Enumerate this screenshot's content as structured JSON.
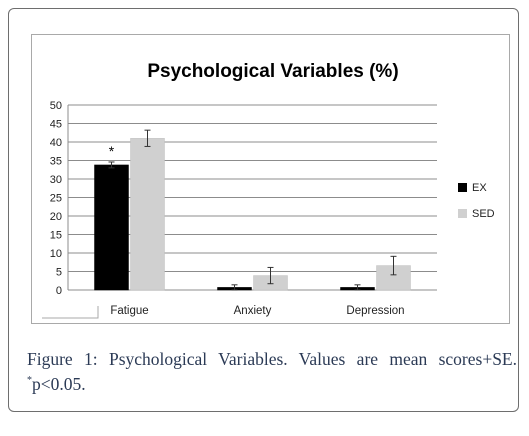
{
  "chart_data": {
    "type": "bar",
    "title": "Psychological Variables (%)",
    "categories": [
      "Fatigue",
      "Anxiety",
      "Depression"
    ],
    "series": [
      {
        "name": "EX",
        "values": [
          33.8,
          0.7,
          0.7
        ],
        "errors": [
          0.8,
          0.7,
          0.7
        ],
        "color": "#000000"
      },
      {
        "name": "SED",
        "values": [
          41.0,
          3.9,
          6.6
        ],
        "errors": [
          2.2,
          2.2,
          2.5
        ],
        "color": "#d0d0d0"
      }
    ],
    "ylim": [
      0,
      50
    ],
    "yticks": [
      0,
      5,
      10,
      15,
      20,
      25,
      30,
      35,
      40,
      45,
      50
    ],
    "annotations": [
      {
        "text": "*",
        "category": "Fatigue",
        "series": "EX"
      }
    ],
    "grid": true,
    "legend_position": "right"
  },
  "caption": {
    "label": "Figure 1:",
    "line1_text": "Psychological Variables. Values are mean scores+SE.",
    "line2_sup": "*",
    "line2_text": "p<0.05."
  }
}
